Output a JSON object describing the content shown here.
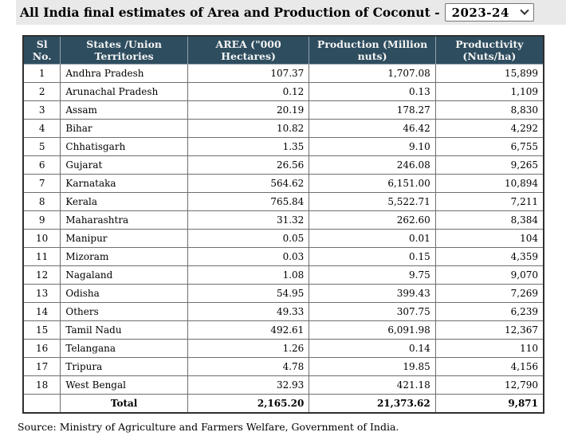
{
  "title": {
    "text": "All India final estimates of Area and Production of Coconut -",
    "year_selector": {
      "selected_value": "2023-24",
      "icon": "chevron-down-icon"
    }
  },
  "colors": {
    "header_bg": "#2e4d5f",
    "header_text": "#f4f4f4",
    "title_bar_bg": "#e9e9e9",
    "outer_border": "#2f2f2f",
    "inner_border": "#6e6e6e"
  },
  "table": {
    "columns": [
      "Sl No.",
      "States /Union Territories",
      "AREA (\"000 Hectares)",
      "Production (Million nuts)",
      "Productivity (Nuts/ha)"
    ],
    "rows": [
      {
        "sl": "1",
        "state": "Andhra Pradesh",
        "area": "107.37",
        "production": "1,707.08",
        "productivity": "15,899"
      },
      {
        "sl": "2",
        "state": "Arunachal Pradesh",
        "area": "0.12",
        "production": "0.13",
        "productivity": "1,109"
      },
      {
        "sl": "3",
        "state": "Assam",
        "area": "20.19",
        "production": "178.27",
        "productivity": "8,830"
      },
      {
        "sl": "4",
        "state": "Bihar",
        "area": "10.82",
        "production": "46.42",
        "productivity": "4,292"
      },
      {
        "sl": "5",
        "state": "Chhatisgarh",
        "area": "1.35",
        "production": "9.10",
        "productivity": "6,755"
      },
      {
        "sl": "6",
        "state": "Gujarat",
        "area": "26.56",
        "production": "246.08",
        "productivity": "9,265"
      },
      {
        "sl": "7",
        "state": "Karnataka",
        "area": "564.62",
        "production": "6,151.00",
        "productivity": "10,894"
      },
      {
        "sl": "8",
        "state": "Kerala",
        "area": "765.84",
        "production": "5,522.71",
        "productivity": "7,211"
      },
      {
        "sl": "9",
        "state": "Maharashtra",
        "area": "31.32",
        "production": "262.60",
        "productivity": "8,384"
      },
      {
        "sl": "10",
        "state": "Manipur",
        "area": "0.05",
        "production": "0.01",
        "productivity": "104"
      },
      {
        "sl": "11",
        "state": "Mizoram",
        "area": "0.03",
        "production": "0.15",
        "productivity": "4,359"
      },
      {
        "sl": "12",
        "state": "Nagaland",
        "area": "1.08",
        "production": "9.75",
        "productivity": "9,070"
      },
      {
        "sl": "13",
        "state": "Odisha",
        "area": "54.95",
        "production": "399.43",
        "productivity": "7,269"
      },
      {
        "sl": "14",
        "state": "Others",
        "area": "49.33",
        "production": "307.75",
        "productivity": "6,239"
      },
      {
        "sl": "15",
        "state": "Tamil Nadu",
        "area": "492.61",
        "production": "6,091.98",
        "productivity": "12,367"
      },
      {
        "sl": "16",
        "state": "Telangana",
        "area": "1.26",
        "production": "0.14",
        "productivity": "110"
      },
      {
        "sl": "17",
        "state": "Tripura",
        "area": "4.78",
        "production": "19.85",
        "productivity": "4,156"
      },
      {
        "sl": "18",
        "state": "West Bengal",
        "area": "32.93",
        "production": "421.18",
        "productivity": "12,790"
      }
    ],
    "total": {
      "label": "Total",
      "area": "2,165.20",
      "production": "21,373.62",
      "productivity": "9,871"
    }
  },
  "source": "Source: Ministry of Agriculture and Farmers Welfare, Government of India."
}
